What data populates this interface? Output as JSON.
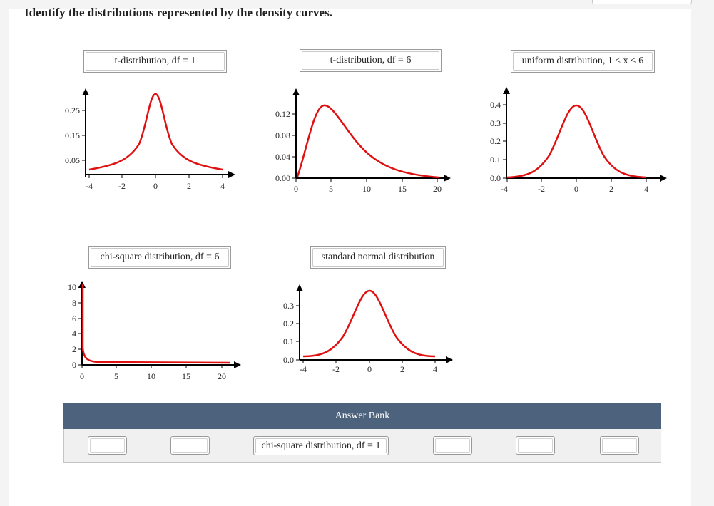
{
  "instructions": "Identify the distributions represented by the density curves.",
  "curve_color": "#e01010",
  "panels": [
    {
      "id": "panel-1",
      "label": "t-distribution, df = 1",
      "x_ticks": [
        "-4",
        "-2",
        "0",
        "2",
        "4"
      ],
      "y_ticks": [
        "0.25",
        "0.15",
        "0.05"
      ],
      "curve": "t-distribution df=1 (heavy tails)"
    },
    {
      "id": "panel-2",
      "label": "t-distribution, df = 6",
      "x_ticks": [
        "0",
        "5",
        "10",
        "15",
        "20"
      ],
      "y_ticks": [
        "0.12",
        "0.08",
        "0.04",
        "0.00"
      ],
      "curve": "right-skewed"
    },
    {
      "id": "panel-3",
      "label": "uniform distribution, 1 ≤ x ≤ 6",
      "x_ticks": [
        "-4",
        "-2",
        "0",
        "2",
        "4"
      ],
      "y_ticks": [
        "0.4",
        "0.3",
        "0.2",
        "0.1",
        "0.0"
      ],
      "curve": "bell"
    },
    {
      "id": "panel-4",
      "label": "chi-square distribution, df = 6",
      "x_ticks": [
        "0",
        "5",
        "10",
        "15",
        "20"
      ],
      "y_ticks": [
        "10",
        "8",
        "6",
        "4",
        "2",
        "0"
      ],
      "curve": "L-shaped"
    },
    {
      "id": "panel-5",
      "label": "standard normal distribution",
      "x_ticks": [
        "-4",
        "-2",
        "0",
        "2",
        "4"
      ],
      "y_ticks": [
        "0.3",
        "0.2",
        "0.1",
        "0.0"
      ],
      "curve": "bell"
    }
  ],
  "answer_bank": {
    "title": "Answer Bank",
    "items": [
      {
        "label": ""
      },
      {
        "label": ""
      },
      {
        "label": "chi-square distribution, df = 1"
      },
      {
        "label": ""
      },
      {
        "label": ""
      },
      {
        "label": ""
      }
    ]
  }
}
